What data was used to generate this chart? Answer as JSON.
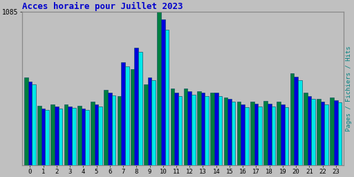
{
  "title": "Acces horaire pour Juillet 2023",
  "title_color": "#0000cc",
  "title_fontsize": 9,
  "ylabel_right": "Pages / Fichiers / Hits",
  "background_color": "#c0c0c0",
  "plot_bg_color": "#c0c0c0",
  "hours": [
    0,
    1,
    2,
    3,
    4,
    5,
    6,
    7,
    8,
    9,
    10,
    11,
    12,
    13,
    14,
    15,
    16,
    17,
    18,
    19,
    20,
    21,
    22,
    23
  ],
  "pages": [
    620,
    420,
    430,
    430,
    420,
    450,
    530,
    490,
    680,
    570,
    1085,
    540,
    540,
    520,
    510,
    480,
    450,
    450,
    455,
    450,
    650,
    510,
    470,
    480
  ],
  "fichiers": [
    590,
    400,
    415,
    415,
    400,
    430,
    510,
    730,
    830,
    620,
    1030,
    510,
    520,
    510,
    510,
    470,
    430,
    435,
    435,
    430,
    625,
    490,
    450,
    460
  ],
  "hits": [
    570,
    390,
    400,
    405,
    390,
    415,
    495,
    700,
    800,
    600,
    960,
    490,
    500,
    490,
    490,
    450,
    410,
    415,
    415,
    410,
    600,
    470,
    430,
    445
  ],
  "pages_color": "#008040",
  "fichiers_color": "#0000dd",
  "hits_color": "#00e8e8",
  "bar_edge_color": "#004060",
  "ylim": [
    0,
    1085
  ],
  "ytick_val": 1085,
  "grid_color": "#aaaaaa",
  "ytick_color": "#000000",
  "xtick_color": "#000000"
}
